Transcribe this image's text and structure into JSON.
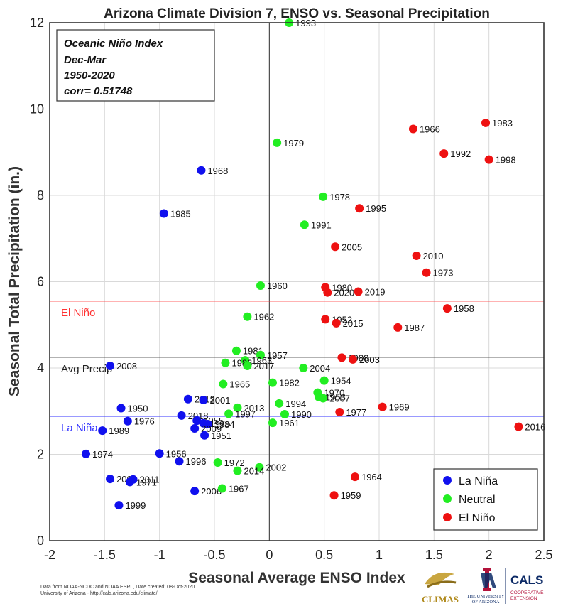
{
  "chart_data": {
    "type": "scatter",
    "title": "Arizona Climate Division 7, ENSO vs. Seasonal Precipitation",
    "xlabel": "Seasonal Average ENSO Index",
    "ylabel": "Seasonal Total Precipitation (in.)",
    "xlim": [
      -2,
      2.5
    ],
    "ylim": [
      0,
      12
    ],
    "xticks": [
      "-2",
      "-1.5",
      "-1",
      "-0.5",
      "0",
      "0.5",
      "1",
      "1.5",
      "2",
      "2.5"
    ],
    "yticks": [
      "0",
      "2",
      "4",
      "6",
      "8",
      "10",
      "12"
    ],
    "grid": true,
    "legend_position": "bottom-right",
    "annotation": [
      "Oceanic Niño Index",
      "Dec-Mar",
      "1950-2020",
      "corr= 0.51748"
    ],
    "reference_lines": [
      {
        "label": "El Niño",
        "y": 5.55,
        "color": "#ff3333"
      },
      {
        "label": "Avg Precip",
        "y": 4.25,
        "color": "#333333"
      },
      {
        "label": "La Niña",
        "y": 2.88,
        "color": "#3333ff"
      }
    ],
    "series": [
      {
        "name": "La Niña",
        "color": "#1010ee",
        "points": [
          {
            "x": -0.62,
            "y": 8.58,
            "label": "1968"
          },
          {
            "x": -0.96,
            "y": 7.58,
            "label": "1985"
          },
          {
            "x": -1.45,
            "y": 4.05,
            "label": "2008"
          },
          {
            "x": -0.74,
            "y": 3.28,
            "label": "2012"
          },
          {
            "x": -0.6,
            "y": 3.26,
            "label": "2001"
          },
          {
            "x": -1.35,
            "y": 3.07,
            "label": "1950"
          },
          {
            "x": -0.8,
            "y": 2.9,
            "label": "2018"
          },
          {
            "x": -1.29,
            "y": 2.77,
            "label": "1976"
          },
          {
            "x": -0.66,
            "y": 2.78,
            "label": "1955"
          },
          {
            "x": -0.6,
            "y": 2.72,
            "label": "1975"
          },
          {
            "x": -0.56,
            "y": 2.7,
            "label": "1984"
          },
          {
            "x": -0.68,
            "y": 2.6,
            "label": "2009"
          },
          {
            "x": -1.52,
            "y": 2.55,
            "label": "1989"
          },
          {
            "x": -0.59,
            "y": 2.44,
            "label": "1951"
          },
          {
            "x": -1.67,
            "y": 2.01,
            "label": "1974"
          },
          {
            "x": -1.0,
            "y": 2.02,
            "label": "1956"
          },
          {
            "x": -0.82,
            "y": 1.84,
            "label": "1996"
          },
          {
            "x": -1.45,
            "y": 1.43,
            "label": "2000"
          },
          {
            "x": -1.24,
            "y": 1.42,
            "label": "2011"
          },
          {
            "x": -1.27,
            "y": 1.36,
            "label": "1971"
          },
          {
            "x": -0.68,
            "y": 1.15,
            "label": "2006"
          },
          {
            "x": -1.37,
            "y": 0.82,
            "label": "1999"
          }
        ]
      },
      {
        "name": "Neutral",
        "color": "#22ee22",
        "points": [
          {
            "x": 0.18,
            "y": 12.0,
            "label": "1993"
          },
          {
            "x": 0.07,
            "y": 9.22,
            "label": "1979"
          },
          {
            "x": 0.49,
            "y": 7.97,
            "label": "1978"
          },
          {
            "x": 0.32,
            "y": 7.32,
            "label": "1991"
          },
          {
            "x": -0.08,
            "y": 5.91,
            "label": "1960"
          },
          {
            "x": -0.2,
            "y": 5.19,
            "label": "1962"
          },
          {
            "x": -0.3,
            "y": 4.4,
            "label": "1981"
          },
          {
            "x": -0.08,
            "y": 4.3,
            "label": "1957"
          },
          {
            "x": -0.22,
            "y": 4.18,
            "label": "1963"
          },
          {
            "x": -0.4,
            "y": 4.12,
            "label": "1986"
          },
          {
            "x": -0.2,
            "y": 4.05,
            "label": "2017"
          },
          {
            "x": 0.31,
            "y": 4.0,
            "label": "2004"
          },
          {
            "x": 0.03,
            "y": 3.66,
            "label": "1982"
          },
          {
            "x": -0.42,
            "y": 3.63,
            "label": "1965"
          },
          {
            "x": 0.5,
            "y": 3.71,
            "label": "1954"
          },
          {
            "x": 0.44,
            "y": 3.43,
            "label": "1970"
          },
          {
            "x": 0.45,
            "y": 3.33,
            "label": "1953"
          },
          {
            "x": 0.49,
            "y": 3.3,
            "label": "2007"
          },
          {
            "x": 0.09,
            "y": 3.18,
            "label": "1994"
          },
          {
            "x": -0.29,
            "y": 3.08,
            "label": "2013"
          },
          {
            "x": -0.37,
            "y": 2.94,
            "label": "1997"
          },
          {
            "x": 0.14,
            "y": 2.93,
            "label": "1990"
          },
          {
            "x": 0.03,
            "y": 2.73,
            "label": "1961"
          },
          {
            "x": -0.47,
            "y": 1.81,
            "label": "1972"
          },
          {
            "x": -0.09,
            "y": 1.7,
            "label": "2002"
          },
          {
            "x": -0.29,
            "y": 1.62,
            "label": "2014"
          },
          {
            "x": -0.43,
            "y": 1.21,
            "label": "1967"
          }
        ]
      },
      {
        "name": "El Niño",
        "color": "#ee1111",
        "points": [
          {
            "x": 1.97,
            "y": 9.68,
            "label": "1983"
          },
          {
            "x": 1.31,
            "y": 9.54,
            "label": "1966"
          },
          {
            "x": 1.59,
            "y": 8.97,
            "label": "1992"
          },
          {
            "x": 2.0,
            "y": 8.83,
            "label": "1998"
          },
          {
            "x": 0.82,
            "y": 7.7,
            "label": "1995"
          },
          {
            "x": 0.6,
            "y": 6.81,
            "label": "2005"
          },
          {
            "x": 1.34,
            "y": 6.6,
            "label": "2010"
          },
          {
            "x": 1.43,
            "y": 6.21,
            "label": "1973"
          },
          {
            "x": 0.51,
            "y": 5.87,
            "label": "1980"
          },
          {
            "x": 0.53,
            "y": 5.75,
            "label": "2020"
          },
          {
            "x": 0.81,
            "y": 5.77,
            "label": "2019"
          },
          {
            "x": 1.62,
            "y": 5.38,
            "label": "1958"
          },
          {
            "x": 0.51,
            "y": 5.13,
            "label": "1952"
          },
          {
            "x": 0.61,
            "y": 5.04,
            "label": "2015"
          },
          {
            "x": 1.17,
            "y": 4.94,
            "label": "1987"
          },
          {
            "x": 0.66,
            "y": 4.24,
            "label": "1988"
          },
          {
            "x": 0.76,
            "y": 4.2,
            "label": "2003"
          },
          {
            "x": 1.03,
            "y": 3.1,
            "label": "1969"
          },
          {
            "x": 0.64,
            "y": 2.98,
            "label": "1977"
          },
          {
            "x": 2.27,
            "y": 2.64,
            "label": "2016"
          },
          {
            "x": 0.78,
            "y": 1.48,
            "label": "1964"
          },
          {
            "x": 0.59,
            "y": 1.05,
            "label": "1959"
          }
        ]
      }
    ]
  },
  "footer": {
    "line1": "Data from NOAA-NCDC and NOAA ESRL, Date created: 08-Oct-2020",
    "line2": "University of Arizona - http://cals.arizona.edu/climate/"
  },
  "logos": {
    "climas": "CLIMAS",
    "ua_line1": "THE UNIVERSITY",
    "ua_line2": "OF ARIZONA",
    "cals": "CALS",
    "cals_sub1": "COOPERATIVE",
    "cals_sub2": "EXTENSION"
  }
}
